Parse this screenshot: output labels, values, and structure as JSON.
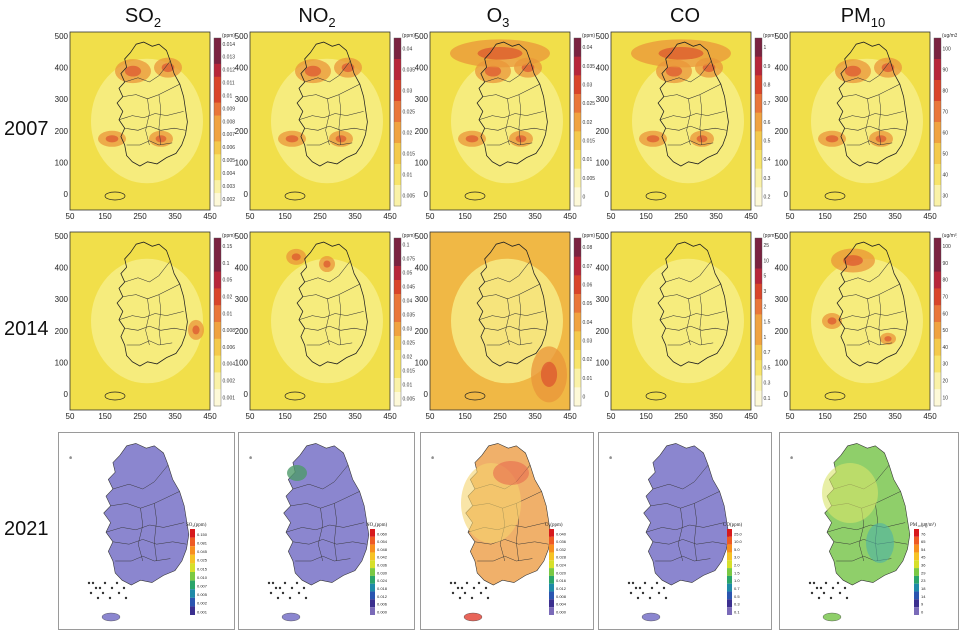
{
  "columns": [
    {
      "name": "SO",
      "sub": "2"
    },
    {
      "name": "NO",
      "sub": "2"
    },
    {
      "name": "O",
      "sub": "3"
    },
    {
      "name": "CO",
      "sub": ""
    },
    {
      "name": "PM",
      "sub": "10"
    }
  ],
  "rows": [
    "2007",
    "2014",
    "2021"
  ],
  "axes": {
    "x_ticks": [
      "50",
      "150",
      "250",
      "350",
      "450"
    ],
    "y_ticks": [
      "500",
      "400",
      "300",
      "200",
      "100",
      "0"
    ]
  },
  "panels_2007": [
    {
      "unit": "(ppm)",
      "ticks": [
        "0.014",
        "0.013",
        "0.012",
        "0.011",
        "0.01",
        "0.009",
        "0.008",
        "0.007",
        "0.006",
        "0.005",
        "0.004",
        "0.003",
        "0.002"
      ]
    },
    {
      "unit": "(ppm)",
      "ticks": [
        "0.04",
        "0.035",
        "0.03",
        "0.025",
        "0.02",
        "0.015",
        "0.01",
        "0.005"
      ]
    },
    {
      "unit": "(ppm)",
      "ticks": [
        "0.04",
        "0.035",
        "0.03",
        "0.025",
        "0.02",
        "0.015",
        "0.01",
        "0.005",
        "0"
      ]
    },
    {
      "unit": "(ppm)",
      "ticks": [
        "1",
        "0.9",
        "0.8",
        "0.7",
        "0.6",
        "0.5",
        "0.4",
        "0.3",
        "0.2"
      ]
    },
    {
      "unit": "(ug/m3)",
      "ticks": [
        "100",
        "90",
        "80",
        "70",
        "60",
        "50",
        "40",
        "30"
      ]
    }
  ],
  "panels_2014": [
    {
      "unit": "(ppm)",
      "ticks": [
        "0.15",
        "0.1",
        "0.05",
        "0.02",
        "0.01",
        "0.008",
        "0.006",
        "0.004",
        "0.002",
        "0.001"
      ]
    },
    {
      "unit": "(ppm)",
      "ticks": [
        "0.1",
        "0.075",
        "0.05",
        "0.045",
        "0.04",
        "0.035",
        "0.03",
        "0.025",
        "0.02",
        "0.015",
        "0.01",
        "0.005"
      ]
    },
    {
      "unit": "(ppm)",
      "ticks": [
        "0.08",
        "0.07",
        "0.06",
        "0.05",
        "0.04",
        "0.03",
        "0.02",
        "0.01",
        "0"
      ]
    },
    {
      "unit": "(ppm)",
      "ticks": [
        "25",
        "10",
        "5",
        "3",
        "2",
        "1.5",
        "1",
        "0.7",
        "0.5",
        "0.3",
        "0.1"
      ]
    },
    {
      "unit": "(ug/m³)",
      "ticks": [
        "100",
        "90",
        "80",
        "70",
        "60",
        "50",
        "40",
        "30",
        "20",
        "10"
      ]
    }
  ],
  "panels_2021": [
    {
      "legend_title": "SO₂(ppm)",
      "ticks": [
        "0.150",
        "0.081",
        "0.045",
        "0.025",
        "0.015",
        "0.010",
        "0.007",
        "0.005",
        "0.002",
        "0.001"
      ]
    },
    {
      "legend_title": "NO₂(ppm)",
      "ticks": [
        "0.060",
        "0.054",
        "0.048",
        "0.042",
        "0.036",
        "0.030",
        "0.024",
        "0.018",
        "0.012",
        "0.006",
        "0.000"
      ]
    },
    {
      "legend_title": "O₃(ppm)",
      "ticks": [
        "0.040",
        "0.036",
        "0.032",
        "0.028",
        "0.024",
        "0.020",
        "0.016",
        "0.012",
        "0.008",
        "0.004",
        "0.000"
      ]
    },
    {
      "legend_title": "CO(ppm)",
      "ticks": [
        "25.0",
        "10.0",
        "5.0",
        "3.0",
        "2.0",
        "1.5",
        "1.0",
        "0.7",
        "0.5",
        "0.3",
        "0.1"
      ]
    },
    {
      "legend_title": "PM₁₀(㎍/m³)",
      "ticks": [
        "76",
        "65",
        "54",
        "45",
        "36",
        "29",
        "23",
        "18",
        "14",
        "9",
        "0"
      ]
    }
  ],
  "colors": {
    "yellow_light": "#f7ef8a",
    "yellow": "#f1df4a",
    "orange_light": "#f0b845",
    "orange": "#e9963a",
    "red": "#d9452b",
    "purple_map": "#8b86cf",
    "green_map": "#8fcf6a"
  }
}
